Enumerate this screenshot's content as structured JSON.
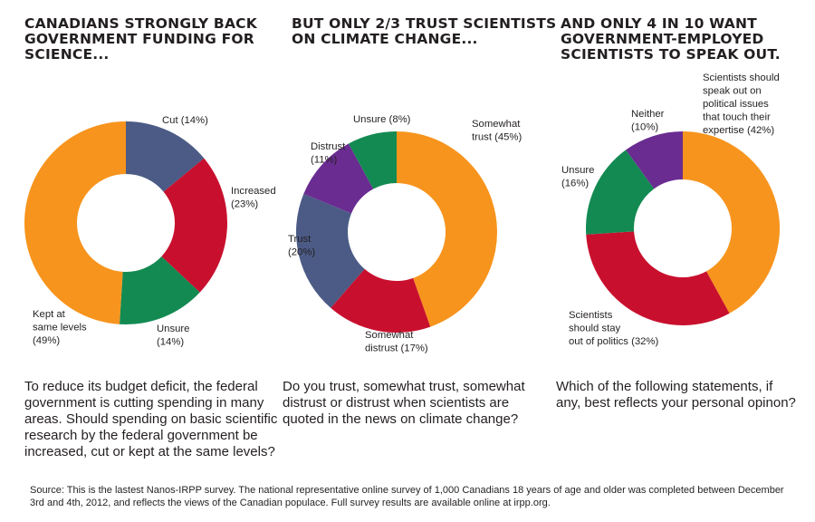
{
  "headings": [
    "CANADIANS STRONGLY BACK\nGOVERNMENT FUNDING FOR\nSCIENCE...",
    "BUT ONLY 2/3 TRUST SCIENTISTS\nON CLIMATE CHANGE...",
    "AND ONLY 4 IN 10 WANT\nGOVERNMENT-EMPLOYED\nSCIENTISTS TO SPEAK OUT."
  ],
  "questions": [
    "To reduce its budget deficit, the federal\ngovernment is cutting spending in many\nareas. Should spending on basic scientific\nresearch by the federal government be\nincreased, cut or kept at the same levels?",
    "Do you trust, somewhat trust, somewhat\ndistrust or distrust when scientists are\nquoted in the news on climate change?",
    "Which of the following statements, if\nany, best reflects your personal opinon?"
  ],
  "source": "Source: This is the lastest Nanos-IRPP survey. The national representative online survey of 1,000 Canadians 18 years of age and older was completed between December 3rd and 4th, 2012, and reflects the views of the Canadian populace. Full survey results are available online at irpp.org.",
  "colors": {
    "orange": "#f7941d",
    "slate": "#4b5b86",
    "red": "#c8102e",
    "green": "#138a52",
    "purple": "#6a2c91"
  },
  "chart_data": [
    {
      "type": "pie",
      "title": "CANADIANS STRONGLY BACK GOVERNMENT FUNDING FOR SCIENCE...",
      "slices": [
        {
          "label": "Cut (14%)",
          "value": 14,
          "color": "#4b5b86"
        },
        {
          "label": "Increased\n(23%)",
          "value": 23,
          "color": "#c8102e"
        },
        {
          "label": "Unsure\n(14%)",
          "value": 14,
          "color": "#138a52"
        },
        {
          "label": "Kept at\nsame levels\n(49%)",
          "value": 49,
          "color": "#f7941d"
        }
      ]
    },
    {
      "type": "pie",
      "title": "BUT ONLY 2/3 TRUST SCIENTISTS ON CLIMATE CHANGE...",
      "slices": [
        {
          "label": "Somewhat\ntrust (45%)",
          "value": 45,
          "color": "#f7941d"
        },
        {
          "label": "Somewhat\ndistrust (17%)",
          "value": 17,
          "color": "#c8102e"
        },
        {
          "label": "Trust\n(20%)",
          "value": 20,
          "color": "#4b5b86"
        },
        {
          "label": "Distrust\n(11%)",
          "value": 11,
          "color": "#6a2c91"
        },
        {
          "label": "Unsure (8%)",
          "value": 8,
          "color": "#138a52"
        }
      ]
    },
    {
      "type": "pie",
      "title": "AND ONLY 4 IN 10 WANT GOVERNMENT-EMPLOYED SCIENTISTS TO SPEAK OUT.",
      "slices": [
        {
          "label": "Scientists should\nspeak out on\npolitical issues\nthat touch their\nexpertise (42%)",
          "value": 42,
          "color": "#f7941d"
        },
        {
          "label": "Scientists\nshould stay\nout of politics (32%)",
          "value": 32,
          "color": "#c8102e"
        },
        {
          "label": "Unsure\n(16%)",
          "value": 16,
          "color": "#138a52"
        },
        {
          "label": "Neither\n(10%)",
          "value": 10,
          "color": "#6a2c91"
        }
      ]
    }
  ]
}
